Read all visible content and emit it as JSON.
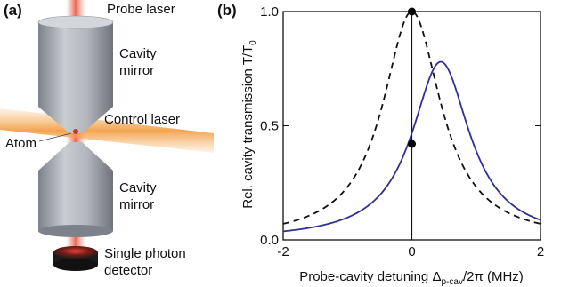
{
  "panel_a": {
    "panel_label": "(a)",
    "labels": {
      "probe_laser": "Probe laser",
      "cavity_mirror_top_line1": "Cavity",
      "cavity_mirror_top_line2": "mirror",
      "control_laser": "Control laser",
      "atom": "Atom",
      "cavity_mirror_bottom_line1": "Cavity",
      "cavity_mirror_bottom_line2": "mirror",
      "detector_line1": "Single photon",
      "detector_line2": "detector"
    },
    "colors": {
      "probe_beam": "#f08a7a",
      "control_beam": "#f7b46a",
      "mirror": "#a9adb4",
      "detector": "#1b1b1b",
      "atom": "#c0392b"
    }
  },
  "panel_b": {
    "panel_label": "(b)",
    "xlabel_main": "Probe-cavity detuning ",
    "xlabel_delta": "Δ",
    "xlabel_sub": "p-cav",
    "xlabel_tail": "/2π (MHz)",
    "ylabel_main": "Rel. cavity transmission T/T",
    "ylabel_sub": "0",
    "colors": {
      "solid": "#2e3192",
      "dashed": "#111111",
      "axis": "#111111"
    }
  },
  "chart_data": {
    "type": "line",
    "xlim": [
      -2,
      2
    ],
    "ylim": [
      0,
      1
    ],
    "xticks": [
      -2,
      0,
      2
    ],
    "xtick_labels": [
      "-2",
      "0",
      "2"
    ],
    "yticks": [
      0,
      0.5,
      1
    ],
    "ytick_labels": [
      "0.0",
      "0.5",
      "1.0"
    ],
    "grid": false,
    "series": [
      {
        "style": "dashed",
        "center": 0.0,
        "peak": 1.0,
        "hwhm": 0.55
      },
      {
        "style": "solid",
        "center": 0.45,
        "peak": 0.78,
        "hwhm": 0.55
      }
    ],
    "points": [
      {
        "x": 0,
        "y": 1.0
      },
      {
        "x": 0,
        "y": 0.42
      }
    ],
    "vertical_line_x": 0
  }
}
